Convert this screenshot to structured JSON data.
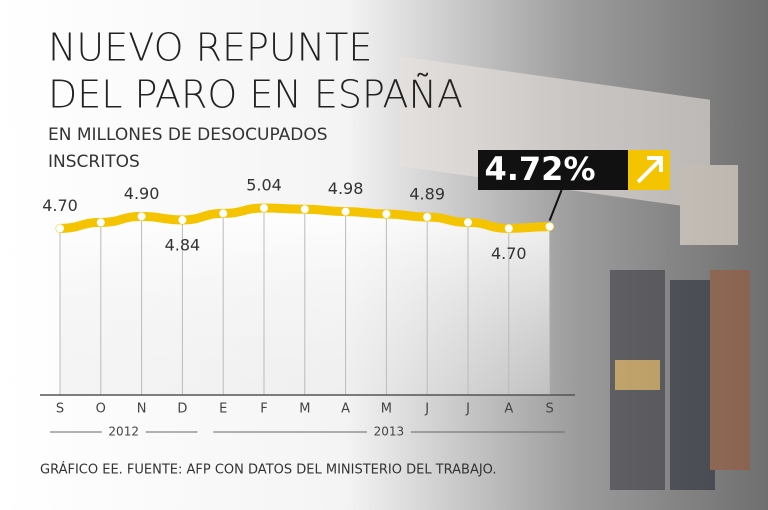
{
  "chart_data": {
    "type": "line",
    "title": [
      "NUEVO REPUNTE",
      "DEL PARO EN ESPAÑA"
    ],
    "subtitle": [
      "EN MILLONES DE DESOCUPADOS",
      "INSCRITOS"
    ],
    "categories": [
      "S",
      "O",
      "N",
      "D",
      "E",
      "F",
      "M",
      "A",
      "M",
      "J",
      "J",
      "A",
      "S"
    ],
    "years": [
      "2012",
      "2013"
    ],
    "series": [
      {
        "color": "#f5c400",
        "values": [
          4.7,
          4.8,
          4.9,
          4.84,
          4.95,
          5.04,
          5.02,
          4.98,
          4.94,
          4.89,
          4.8,
          4.7,
          4.73
        ],
        "value_labels": [
          "4.70",
          null,
          "4.90",
          "4.84",
          null,
          "5.04",
          null,
          "4.98",
          null,
          "4.89",
          null,
          "4.70",
          null
        ]
      }
    ],
    "annotation": "4.72%",
    "source": "GRÁFICO EE. FUENTE: AFP CON DATOS DEL MINISTERIO DEL TRABAJO."
  }
}
